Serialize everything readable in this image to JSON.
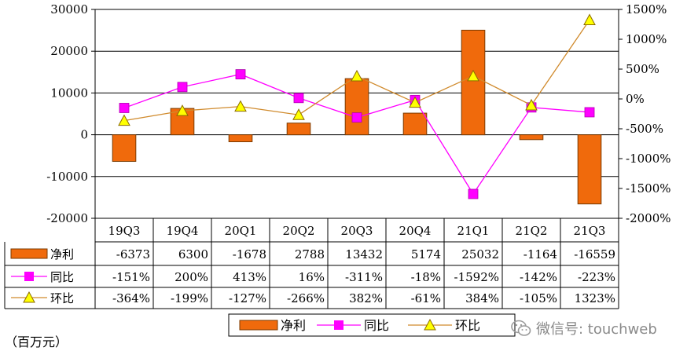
{
  "chart_data": {
    "type": "bar",
    "categories": [
      "19Q3",
      "19Q4",
      "20Q1",
      "20Q2",
      "20Q3",
      "20Q4",
      "21Q1",
      "21Q2",
      "21Q3"
    ],
    "series": [
      {
        "name": "净利",
        "kind": "bar",
        "axis": "left",
        "color": "#f06a0c",
        "values": [
          -6373,
          6300,
          -1678,
          2788,
          13432,
          5174,
          25032,
          -1164,
          -16559
        ],
        "labels": [
          "-6373",
          "6300",
          "-1678",
          "2788",
          "13432",
          "5174",
          "25032",
          "-1164",
          "-16559"
        ]
      },
      {
        "name": "同比",
        "kind": "line",
        "axis": "right",
        "color": "#ff00ff",
        "marker": "square",
        "values": [
          -151,
          200,
          413,
          16,
          -311,
          -18,
          -1592,
          -142,
          -223
        ],
        "labels": [
          "-151%",
          "200%",
          "413%",
          "16%",
          "-311%",
          "-18%",
          "-1592%",
          "-142%",
          "-223%"
        ]
      },
      {
        "name": "环比",
        "kind": "line",
        "axis": "right",
        "color": "#d08a2c",
        "marker": "triangle",
        "values": [
          -364,
          -199,
          -127,
          -266,
          382,
          -61,
          384,
          -105,
          1323
        ],
        "labels": [
          "-364%",
          "-199%",
          "-127%",
          "-266%",
          "382%",
          "-61%",
          "384%",
          "-105%",
          "1323%"
        ]
      }
    ],
    "y_left": {
      "ylim": [
        -20000,
        30000
      ],
      "ticks": [
        -20000,
        -10000,
        0,
        10000,
        20000,
        30000
      ],
      "tick_labels": [
        "-20000",
        "-10000",
        "0",
        "10000",
        "20000",
        "30000"
      ]
    },
    "y_right": {
      "ylim": [
        -2000,
        1500
      ],
      "ticks": [
        -2000,
        -1500,
        -1000,
        -500,
        0,
        500,
        1000,
        1500
      ],
      "tick_labels": [
        "-2000%",
        "-1500%",
        "-1000%",
        "-500%",
        "0%",
        "500%",
        "1000%",
        "1500%"
      ]
    },
    "grid": true,
    "legend_position": "bottom-center",
    "unit_label": "（百万元）"
  },
  "watermark": {
    "text": "微信号: touchweb",
    "icon": "wechat-icon"
  }
}
